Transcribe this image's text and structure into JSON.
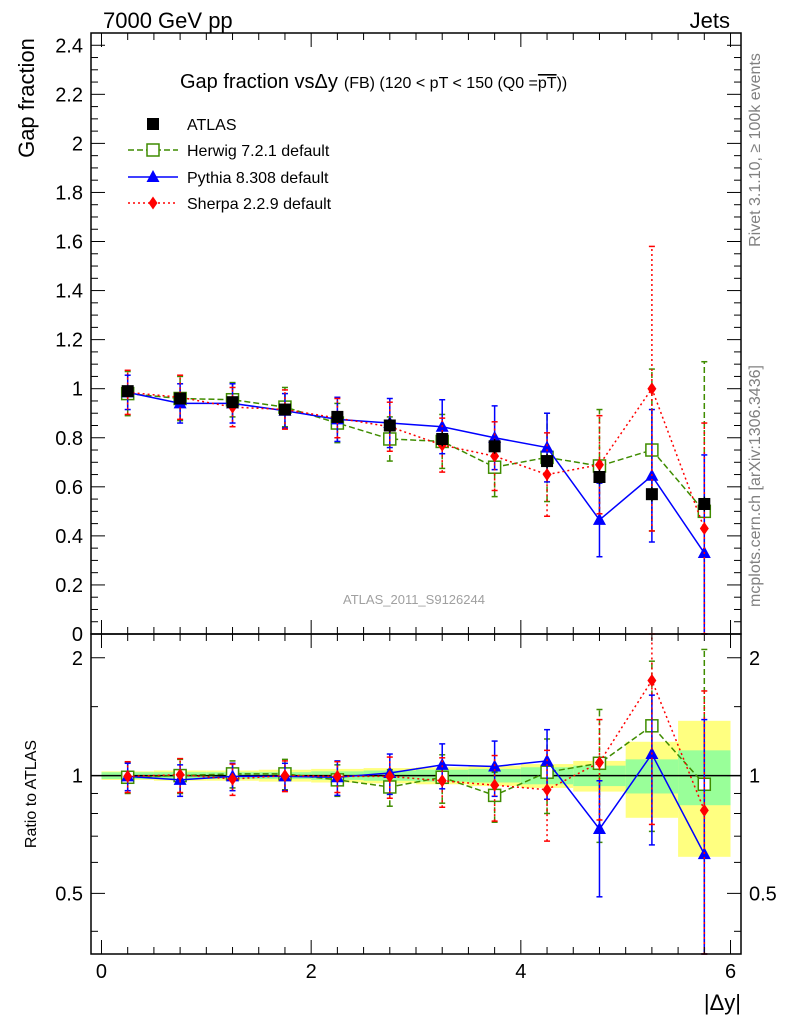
{
  "header": {
    "left": "7000 GeV pp",
    "right": "Jets",
    "side_top": "Rivet 3.1.10, ≥ 100k events",
    "side_bottom": "mcplots.cern.ch [arXiv:1306.3436]"
  },
  "colors": {
    "atlas": "#000000",
    "herwig": "#3f8c00",
    "pythia": "#0000ff",
    "sherpa": "#ff0000",
    "band_inner": "#99ff99",
    "band_outer": "#ffff80",
    "side_text": "#808080"
  },
  "chart_data": [
    {
      "type": "scatter",
      "panel": "main",
      "title_main": "Gap fraction vsΔy",
      "title_sub": "(FB) (120 < pT < 150 (Q0 =",
      "title_overline": "pT",
      "title_close": "))",
      "ylabel": "Gap fraction",
      "watermark": "ATLAS_2011_S9126244",
      "xlim": [
        -0.1,
        6.1
      ],
      "ylim": [
        0,
        2.45
      ],
      "yticks": [
        0,
        0.2,
        0.4,
        0.6,
        0.8,
        1,
        1.2,
        1.4,
        1.6,
        1.8,
        2,
        2.2,
        2.4
      ],
      "ytick_labels": [
        "0",
        "0.2",
        "0.4",
        "0.6",
        "0.8",
        "1",
        "1.2",
        "1.4",
        "1.6",
        "1.8",
        "2",
        "2.2",
        "2.4"
      ],
      "legend_position": "top-left",
      "x": [
        0.25,
        0.75,
        1.25,
        1.75,
        2.25,
        2.75,
        3.25,
        3.75,
        4.25,
        4.75,
        5.25,
        5.75
      ],
      "series": [
        {
          "name": "ATLAS",
          "marker": "filled-square",
          "line": "none",
          "values": [
            0.99,
            0.96,
            0.945,
            0.915,
            0.885,
            0.85,
            0.795,
            0.765,
            0.705,
            0.64,
            0.57,
            0.53
          ],
          "errors": [
            0.02,
            0.02,
            0.02,
            0.02,
            0.02,
            0.03,
            0.03,
            0.03,
            0.03,
            0.03,
            0.03,
            0.03
          ]
        },
        {
          "name": "Herwig 7.2.1 default",
          "marker": "open-square",
          "line": "dashed",
          "values": [
            0.98,
            0.96,
            0.955,
            0.925,
            0.86,
            0.795,
            0.785,
            0.68,
            0.72,
            0.685,
            0.75,
            0.5
          ],
          "errors": [
            0.09,
            0.09,
            0.07,
            0.08,
            0.08,
            0.09,
            0.11,
            0.12,
            0.18,
            0.23,
            0.33,
            0.61
          ]
        },
        {
          "name": "Pythia 8.308 default",
          "marker": "triangle",
          "line": "solid",
          "values": [
            0.985,
            0.94,
            0.94,
            0.91,
            0.875,
            0.86,
            0.845,
            0.8,
            0.76,
            0.465,
            0.645,
            0.33
          ],
          "errors": [
            0.07,
            0.08,
            0.08,
            0.07,
            0.09,
            0.1,
            0.11,
            0.13,
            0.14,
            0.15,
            0.27,
            0.4
          ]
        },
        {
          "name": "Sherpa 2.2.9 default",
          "marker": "diamond",
          "line": "dotted",
          "values": [
            0.985,
            0.965,
            0.925,
            0.915,
            0.88,
            0.845,
            0.77,
            0.725,
            0.65,
            0.69,
            1.0,
            0.43
          ],
          "errors": [
            0.09,
            0.09,
            0.08,
            0.08,
            0.08,
            0.1,
            0.11,
            0.14,
            0.17,
            0.2,
            0.58,
            0.43
          ]
        }
      ]
    },
    {
      "type": "scatter",
      "panel": "ratio",
      "ylabel": "Ratio to ATLAS",
      "xlabel": "|Δy|",
      "xlim": [
        -0.1,
        6.1
      ],
      "ylim": [
        0.35,
        2.3
      ],
      "y_scale": "log",
      "xticks": [
        0,
        2,
        4,
        6
      ],
      "xtick_labels": [
        "0",
        "2",
        "4",
        "6"
      ],
      "yticks": [
        0.5,
        1,
        2
      ],
      "ytick_labels": [
        "0.5",
        "1",
        "2"
      ],
      "x": [
        0.25,
        0.75,
        1.25,
        1.75,
        2.25,
        2.75,
        3.25,
        3.75,
        4.25,
        4.75,
        5.25,
        5.75
      ],
      "uncertainty_band_inner": [
        0.02,
        0.02,
        0.02,
        0.02,
        0.025,
        0.03,
        0.035,
        0.04,
        0.05,
        0.06,
        0.1,
        0.16
      ],
      "uncertainty_band_outer": [
        0.025,
        0.03,
        0.03,
        0.035,
        0.04,
        0.045,
        0.05,
        0.06,
        0.07,
        0.09,
        0.22,
        0.38
      ],
      "series": [
        {
          "name": "Herwig 7.2.1 default",
          "values": [
            0.99,
            1.0,
            1.01,
            1.01,
            0.975,
            0.935,
            0.99,
            0.89,
            1.02,
            1.075,
            1.34,
            0.95
          ],
          "errors": [
            0.09,
            0.1,
            0.08,
            0.09,
            0.09,
            0.1,
            0.14,
            0.13,
            0.22,
            0.4,
            0.62,
            1.15
          ]
        },
        {
          "name": "Pythia 8.308 default",
          "values": [
            0.995,
            0.975,
            0.995,
            0.995,
            0.99,
            1.015,
            1.065,
            1.055,
            1.09,
            0.73,
            1.135,
            0.63
          ],
          "errors": [
            0.08,
            0.09,
            0.08,
            0.08,
            0.1,
            0.12,
            0.14,
            0.17,
            0.22,
            0.24,
            0.47,
            0.76
          ]
        },
        {
          "name": "Sherpa 2.2.9 default",
          "values": [
            0.995,
            1.005,
            0.98,
            1.0,
            0.995,
            0.995,
            0.97,
            0.945,
            0.92,
            1.08,
            1.75,
            0.815
          ],
          "errors": [
            0.09,
            0.1,
            0.09,
            0.09,
            0.09,
            0.12,
            0.14,
            0.18,
            0.24,
            0.31,
            1.0,
            0.83
          ]
        }
      ]
    }
  ]
}
